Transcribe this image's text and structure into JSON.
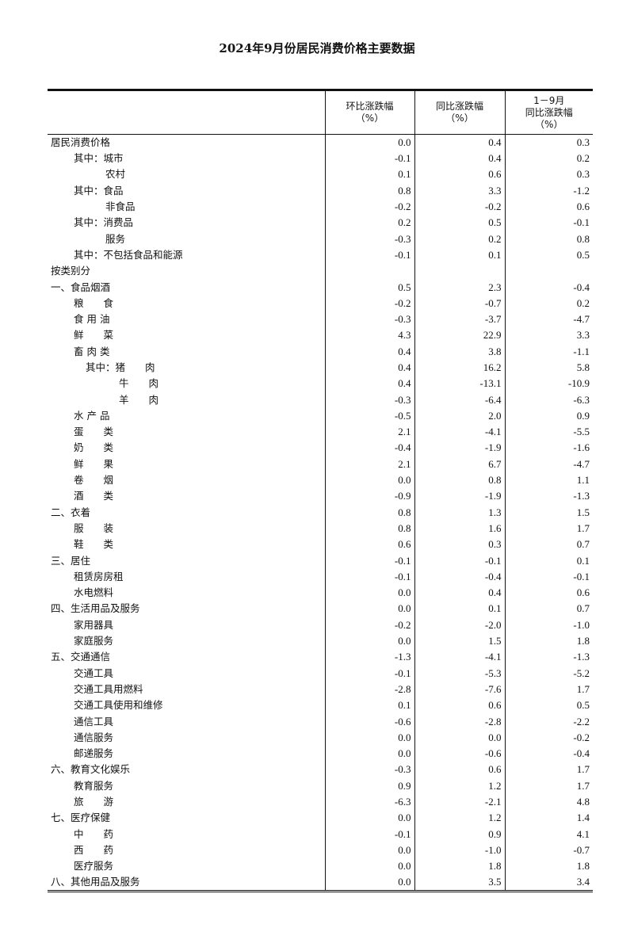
{
  "title": "2024年9月份居民消费价格主要数据",
  "headers": [
    "",
    "环比涨跌幅\n（%）",
    "同比涨跌幅\n（%）",
    "1－9月\n同比涨跌幅\n（%）"
  ],
  "rows": [
    {
      "label": "居民消费价格",
      "level": 0,
      "v": [
        "0.0",
        "0.4",
        "0.3"
      ]
    },
    {
      "label": "其中：城市",
      "level": 1,
      "v": [
        "-0.1",
        "0.4",
        "0.2"
      ]
    },
    {
      "label": "农村",
      "level": 2,
      "v": [
        "0.1",
        "0.6",
        "0.3"
      ]
    },
    {
      "label": "其中：食品",
      "level": 1,
      "v": [
        "0.8",
        "3.3",
        "-1.2"
      ]
    },
    {
      "label": "非食品",
      "level": 2,
      "v": [
        "-0.2",
        "-0.2",
        "0.6"
      ]
    },
    {
      "label": "其中：消费品",
      "level": 1,
      "v": [
        "0.2",
        "0.5",
        "-0.1"
      ]
    },
    {
      "label": "服务",
      "level": 2,
      "v": [
        "-0.3",
        "0.2",
        "0.8"
      ]
    },
    {
      "label": "其中：不包括食品和能源",
      "level": 1,
      "v": [
        "-0.1",
        "0.1",
        "0.5"
      ]
    },
    {
      "label": "按类别分",
      "level": 0,
      "v": [
        "",
        "",
        ""
      ]
    },
    {
      "label": "一、食品烟酒",
      "level": 0,
      "v": [
        "0.5",
        "2.3",
        "-0.4"
      ]
    },
    {
      "label": "粮　　食",
      "level": 1,
      "v": [
        "-0.2",
        "-0.7",
        "0.2"
      ]
    },
    {
      "label": "食 用 油",
      "level": 1,
      "v": [
        "-0.3",
        "-3.7",
        "-4.7"
      ]
    },
    {
      "label": "鲜　　菜",
      "level": 1,
      "v": [
        "4.3",
        "22.9",
        "3.3"
      ]
    },
    {
      "label": "畜 肉 类",
      "level": 1,
      "v": [
        "0.4",
        "3.8",
        "-1.1"
      ]
    },
    {
      "label": "其中：猪　　肉",
      "level": 3,
      "v": [
        "0.4",
        "16.2",
        "5.8"
      ]
    },
    {
      "label": "牛　　肉",
      "level": 4,
      "v": [
        "0.4",
        "-13.1",
        "-10.9"
      ]
    },
    {
      "label": "羊　　肉",
      "level": 4,
      "v": [
        "-0.3",
        "-6.4",
        "-6.3"
      ]
    },
    {
      "label": "水 产 品",
      "level": 1,
      "v": [
        "-0.5",
        "2.0",
        "0.9"
      ]
    },
    {
      "label": "蛋　　类",
      "level": 1,
      "v": [
        "2.1",
        "-4.1",
        "-5.5"
      ]
    },
    {
      "label": "奶　　类",
      "level": 1,
      "v": [
        "-0.4",
        "-1.9",
        "-1.6"
      ]
    },
    {
      "label": "鲜　　果",
      "level": 1,
      "v": [
        "2.1",
        "6.7",
        "-4.7"
      ]
    },
    {
      "label": "卷　　烟",
      "level": 1,
      "v": [
        "0.0",
        "0.8",
        "1.1"
      ]
    },
    {
      "label": "酒　　类",
      "level": 1,
      "v": [
        "-0.9",
        "-1.9",
        "-1.3"
      ]
    },
    {
      "label": "二、衣着",
      "level": 0,
      "v": [
        "0.8",
        "1.3",
        "1.5"
      ]
    },
    {
      "label": "服　　装",
      "level": 1,
      "v": [
        "0.8",
        "1.6",
        "1.7"
      ]
    },
    {
      "label": "鞋　　类",
      "level": 1,
      "v": [
        "0.6",
        "0.3",
        "0.7"
      ]
    },
    {
      "label": "三、居住",
      "level": 0,
      "v": [
        "-0.1",
        "-0.1",
        "0.1"
      ]
    },
    {
      "label": "租赁房房租",
      "level": 1,
      "v": [
        "-0.1",
        "-0.4",
        "-0.1"
      ]
    },
    {
      "label": "水电燃料",
      "level": 1,
      "v": [
        "0.0",
        "0.4",
        "0.6"
      ]
    },
    {
      "label": "四、生活用品及服务",
      "level": 0,
      "v": [
        "0.0",
        "0.1",
        "0.7"
      ]
    },
    {
      "label": "家用器具",
      "level": 1,
      "v": [
        "-0.2",
        "-2.0",
        "-1.0"
      ]
    },
    {
      "label": "家庭服务",
      "level": 1,
      "v": [
        "0.0",
        "1.5",
        "1.8"
      ]
    },
    {
      "label": "五、交通通信",
      "level": 0,
      "v": [
        "-1.3",
        "-4.1",
        "-1.3"
      ]
    },
    {
      "label": "交通工具",
      "level": 1,
      "v": [
        "-0.1",
        "-5.3",
        "-5.2"
      ]
    },
    {
      "label": "交通工具用燃料",
      "level": 1,
      "v": [
        "-2.8",
        "-7.6",
        "1.7"
      ]
    },
    {
      "label": "交通工具使用和维修",
      "level": 1,
      "v": [
        "0.1",
        "0.6",
        "0.5"
      ]
    },
    {
      "label": "通信工具",
      "level": 1,
      "v": [
        "-0.6",
        "-2.8",
        "-2.2"
      ]
    },
    {
      "label": "通信服务",
      "level": 1,
      "v": [
        "0.0",
        "0.0",
        "-0.2"
      ]
    },
    {
      "label": "邮递服务",
      "level": 1,
      "v": [
        "0.0",
        "-0.6",
        "-0.4"
      ]
    },
    {
      "label": "六、教育文化娱乐",
      "level": 0,
      "v": [
        "-0.3",
        "0.6",
        "1.7"
      ]
    },
    {
      "label": "教育服务",
      "level": 1,
      "v": [
        "0.9",
        "1.2",
        "1.7"
      ]
    },
    {
      "label": "旅　　游",
      "level": 1,
      "v": [
        "-6.3",
        "-2.1",
        "4.8"
      ]
    },
    {
      "label": "七、医疗保健",
      "level": 0,
      "v": [
        "0.0",
        "1.2",
        "1.4"
      ]
    },
    {
      "label": "中　　药",
      "level": 1,
      "v": [
        "-0.1",
        "0.9",
        "4.1"
      ]
    },
    {
      "label": "西　　药",
      "level": 1,
      "v": [
        "0.0",
        "-1.0",
        "-0.7"
      ]
    },
    {
      "label": "医疗服务",
      "level": 1,
      "v": [
        "0.0",
        "1.8",
        "1.8"
      ]
    },
    {
      "label": "八、其他用品及服务",
      "level": 0,
      "v": [
        "0.0",
        "3.5",
        "3.4"
      ]
    }
  ]
}
